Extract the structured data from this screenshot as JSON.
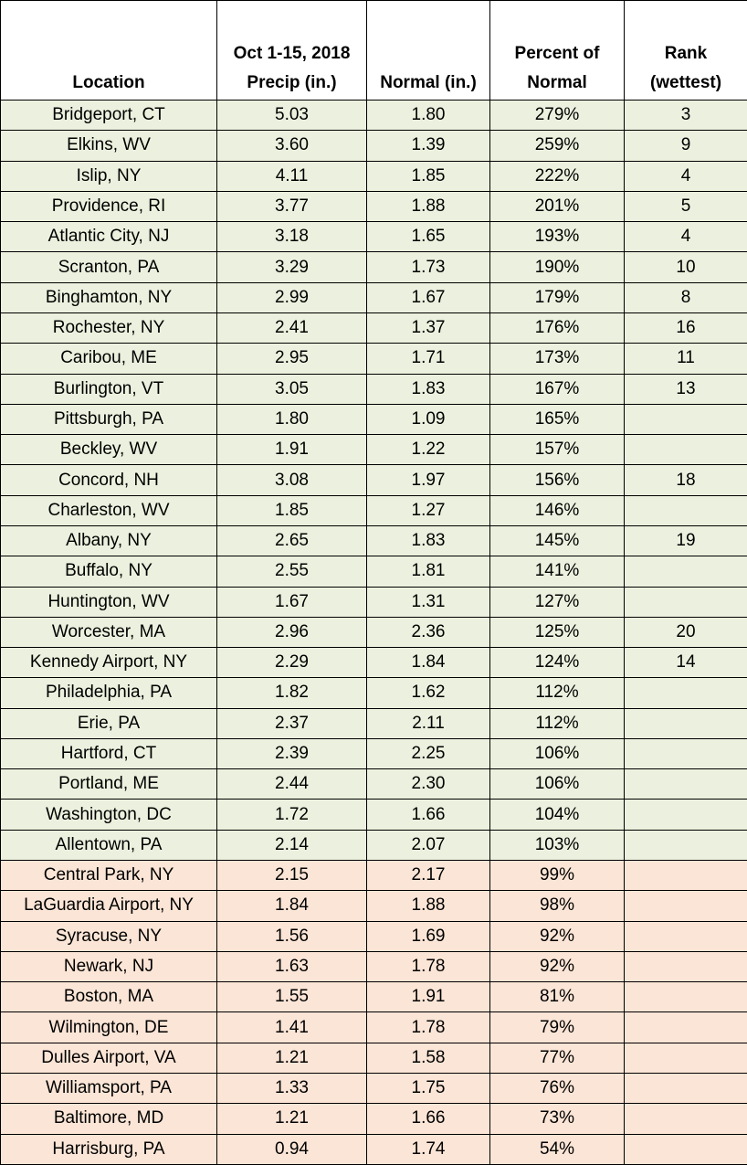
{
  "table": {
    "header": [
      "Location",
      "Oct 1-15, 2018\nPrecip (in.)",
      "Normal (in.)",
      "Percent of\nNormal",
      "Rank\n(wettest)"
    ],
    "rows": [
      {
        "fill": "#ebf1de",
        "cells": [
          "Bridgeport, CT",
          "5.03",
          "1.80",
          "279%",
          "3"
        ]
      },
      {
        "fill": "#ebf1de",
        "cells": [
          "Elkins, WV",
          "3.60",
          "1.39",
          "259%",
          "9"
        ]
      },
      {
        "fill": "#ebf1de",
        "cells": [
          "Islip, NY",
          "4.11",
          "1.85",
          "222%",
          "4"
        ]
      },
      {
        "fill": "#ebf1de",
        "cells": [
          "Providence, RI",
          "3.77",
          "1.88",
          "201%",
          "5"
        ]
      },
      {
        "fill": "#ebf1de",
        "cells": [
          "Atlantic City, NJ",
          "3.18",
          "1.65",
          "193%",
          "4"
        ]
      },
      {
        "fill": "#ebf1de",
        "cells": [
          "Scranton, PA",
          "3.29",
          "1.73",
          "190%",
          "10"
        ]
      },
      {
        "fill": "#ebf1de",
        "cells": [
          "Binghamton, NY",
          "2.99",
          "1.67",
          "179%",
          "8"
        ]
      },
      {
        "fill": "#ebf1de",
        "cells": [
          "Rochester, NY",
          "2.41",
          "1.37",
          "176%",
          "16"
        ]
      },
      {
        "fill": "#ebf1de",
        "cells": [
          "Caribou, ME",
          "2.95",
          "1.71",
          "173%",
          "11"
        ]
      },
      {
        "fill": "#ebf1de",
        "cells": [
          "Burlington, VT",
          "3.05",
          "1.83",
          "167%",
          "13"
        ]
      },
      {
        "fill": "#ebf1de",
        "cells": [
          "Pittsburgh, PA",
          "1.80",
          "1.09",
          "165%",
          null
        ]
      },
      {
        "fill": "#ebf1de",
        "cells": [
          "Beckley, WV",
          "1.91",
          "1.22",
          "157%",
          null
        ]
      },
      {
        "fill": "#ebf1de",
        "cells": [
          "Concord, NH",
          "3.08",
          "1.97",
          "156%",
          "18"
        ]
      },
      {
        "fill": "#ebf1de",
        "cells": [
          "Charleston, WV",
          "1.85",
          "1.27",
          "146%",
          null
        ]
      },
      {
        "fill": "#ebf1de",
        "cells": [
          "Albany, NY",
          "2.65",
          "1.83",
          "145%",
          "19"
        ]
      },
      {
        "fill": "#ebf1de",
        "cells": [
          "Buffalo, NY",
          "2.55",
          "1.81",
          "141%",
          null
        ]
      },
      {
        "fill": "#ebf1de",
        "cells": [
          "Huntington, WV",
          "1.67",
          "1.31",
          "127%",
          null
        ]
      },
      {
        "fill": "#ebf1de",
        "cells": [
          "Worcester, MA",
          "2.96",
          "2.36",
          "125%",
          "20"
        ]
      },
      {
        "fill": "#ebf1de",
        "cells": [
          "Kennedy Airport, NY",
          "2.29",
          "1.84",
          "124%",
          "14"
        ]
      },
      {
        "fill": "#ebf1de",
        "cells": [
          "Philadelphia, PA",
          "1.82",
          "1.62",
          "112%",
          null
        ]
      },
      {
        "fill": "#ebf1de",
        "cells": [
          "Erie, PA",
          "2.37",
          "2.11",
          "112%",
          null
        ]
      },
      {
        "fill": "#ebf1de",
        "cells": [
          "Hartford, CT",
          "2.39",
          "2.25",
          "106%",
          null
        ]
      },
      {
        "fill": "#ebf1de",
        "cells": [
          "Portland, ME",
          "2.44",
          "2.30",
          "106%",
          null
        ]
      },
      {
        "fill": "#ebf1de",
        "cells": [
          "Washington, DC",
          "1.72",
          "1.66",
          "104%",
          null
        ]
      },
      {
        "fill": "#ebf1de",
        "cells": [
          "Allentown, PA",
          "2.14",
          "2.07",
          "103%",
          null
        ]
      },
      {
        "fill": "#fbe5d6",
        "cells": [
          "Central Park, NY",
          "2.15",
          "2.17",
          "99%",
          null
        ]
      },
      {
        "fill": "#fbe5d6",
        "cells": [
          "LaGuardia Airport, NY",
          "1.84",
          "1.88",
          "98%",
          null
        ]
      },
      {
        "fill": "#fbe5d6",
        "cells": [
          "Syracuse, NY",
          "1.56",
          "1.69",
          "92%",
          null
        ]
      },
      {
        "fill": "#fbe5d6",
        "cells": [
          "Newark, NJ",
          "1.63",
          "1.78",
          "92%",
          null
        ]
      },
      {
        "fill": "#fbe5d6",
        "cells": [
          "Boston, MA",
          "1.55",
          "1.91",
          "81%",
          null
        ]
      },
      {
        "fill": "#fbe5d6",
        "cells": [
          "Wilmington, DE",
          "1.41",
          "1.78",
          "79%",
          null
        ]
      },
      {
        "fill": "#fbe5d6",
        "cells": [
          "Dulles Airport, VA",
          "1.21",
          "1.58",
          "77%",
          null
        ]
      },
      {
        "fill": "#fbe5d6",
        "cells": [
          "Williamsport, PA",
          "1.33",
          "1.75",
          "76%",
          null
        ]
      },
      {
        "fill": "#fbe5d6",
        "cells": [
          "Baltimore, MD",
          "1.21",
          "1.66",
          "73%",
          null
        ]
      },
      {
        "fill": "#fbe5d6",
        "cells": [
          "Harrisburg, PA",
          "0.94",
          "1.74",
          "54%",
          null
        ]
      }
    ]
  }
}
